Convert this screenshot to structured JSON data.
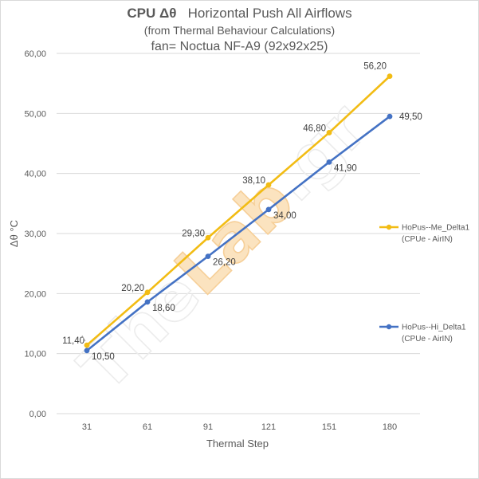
{
  "chart_data": {
    "type": "line",
    "title_bold": "CPU  Δθ",
    "title_rest": "Horizontal Push All Airflows",
    "subtitle1": "(from Thermal Behaviour Calculations)",
    "subtitle2": "fan= Noctua NF-A9  (92x92x25)",
    "xlabel": "Thermal Step",
    "ylabel": "Δθ °C",
    "categories": [
      "31",
      "61",
      "91",
      "121",
      "151",
      "180"
    ],
    "yticks": [
      "0,00",
      "10,00",
      "20,00",
      "30,00",
      "40,00",
      "50,00",
      "60,00"
    ],
    "ylim": [
      0,
      60
    ],
    "grid": true,
    "legend_position": "right",
    "series": [
      {
        "name_line1": "HoPus--Me_Delta1",
        "name_line2": "(CPUe - AirIN)",
        "color": "#f2bc14",
        "values": [
          11.4,
          20.2,
          29.3,
          38.1,
          46.8,
          56.2
        ],
        "labels": [
          "11,40",
          "20,20",
          "29,30",
          "38,10",
          "46,80",
          "56,20"
        ]
      },
      {
        "name_line1": "HoPus--Hi_Delta1",
        "name_line2": "(CPUe - AirIN)",
        "color": "#4472c4",
        "values": [
          10.5,
          18.6,
          26.2,
          34.0,
          41.9,
          49.5
        ],
        "labels": [
          "10,50",
          "18,60",
          "26,20",
          "34,00",
          "41,90",
          "49,50"
        ]
      }
    ],
    "watermark": "TheLab.gr"
  }
}
